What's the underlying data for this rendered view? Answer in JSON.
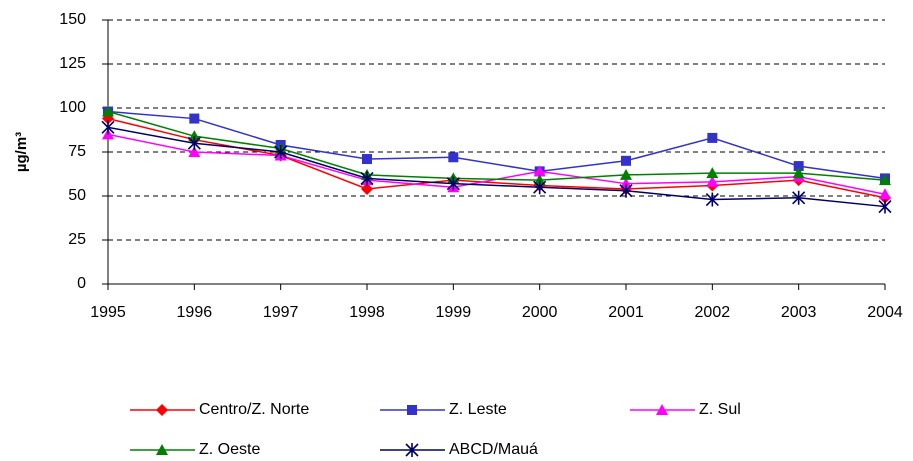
{
  "chart_data": {
    "type": "line",
    "y_label": "µg/m³",
    "x": [
      1995,
      1996,
      1997,
      1998,
      1999,
      2000,
      2001,
      2002,
      2003,
      2004
    ],
    "xlim": [
      1995,
      2004
    ],
    "xticks": [
      1995,
      1996,
      1997,
      1998,
      1999,
      2000,
      2001,
      2002,
      2003,
      2004
    ],
    "ylim": [
      0,
      150
    ],
    "yticks": [
      0,
      25,
      50,
      75,
      100,
      125,
      150
    ],
    "grid": true,
    "legend": "bottom",
    "series": [
      {
        "name": "Centro/Z. Norte",
        "color": "#ff0000",
        "marker": "diamond",
        "values": [
          94,
          82,
          73,
          54,
          59,
          56,
          54,
          56,
          59,
          49
        ]
      },
      {
        "name": "Z. Leste",
        "color": "#3333cc",
        "marker": "square",
        "values": [
          98,
          94,
          79,
          71,
          72,
          64,
          70,
          83,
          67,
          60
        ]
      },
      {
        "name": "Z. Sul",
        "color": "#ff00ff",
        "marker": "triangle",
        "values": [
          85,
          75,
          73,
          59,
          55,
          64,
          57,
          58,
          61,
          51
        ]
      },
      {
        "name": "Z. Oeste",
        "color": "#008000",
        "marker": "triangle",
        "values": [
          98,
          84,
          77,
          62,
          60,
          59,
          62,
          63,
          63,
          59
        ]
      },
      {
        "name": "ABCD/Mauá",
        "color": "#000066",
        "marker": "asterisk",
        "values": [
          89,
          80,
          75,
          60,
          57,
          55,
          53,
          48,
          49,
          44
        ]
      }
    ]
  }
}
